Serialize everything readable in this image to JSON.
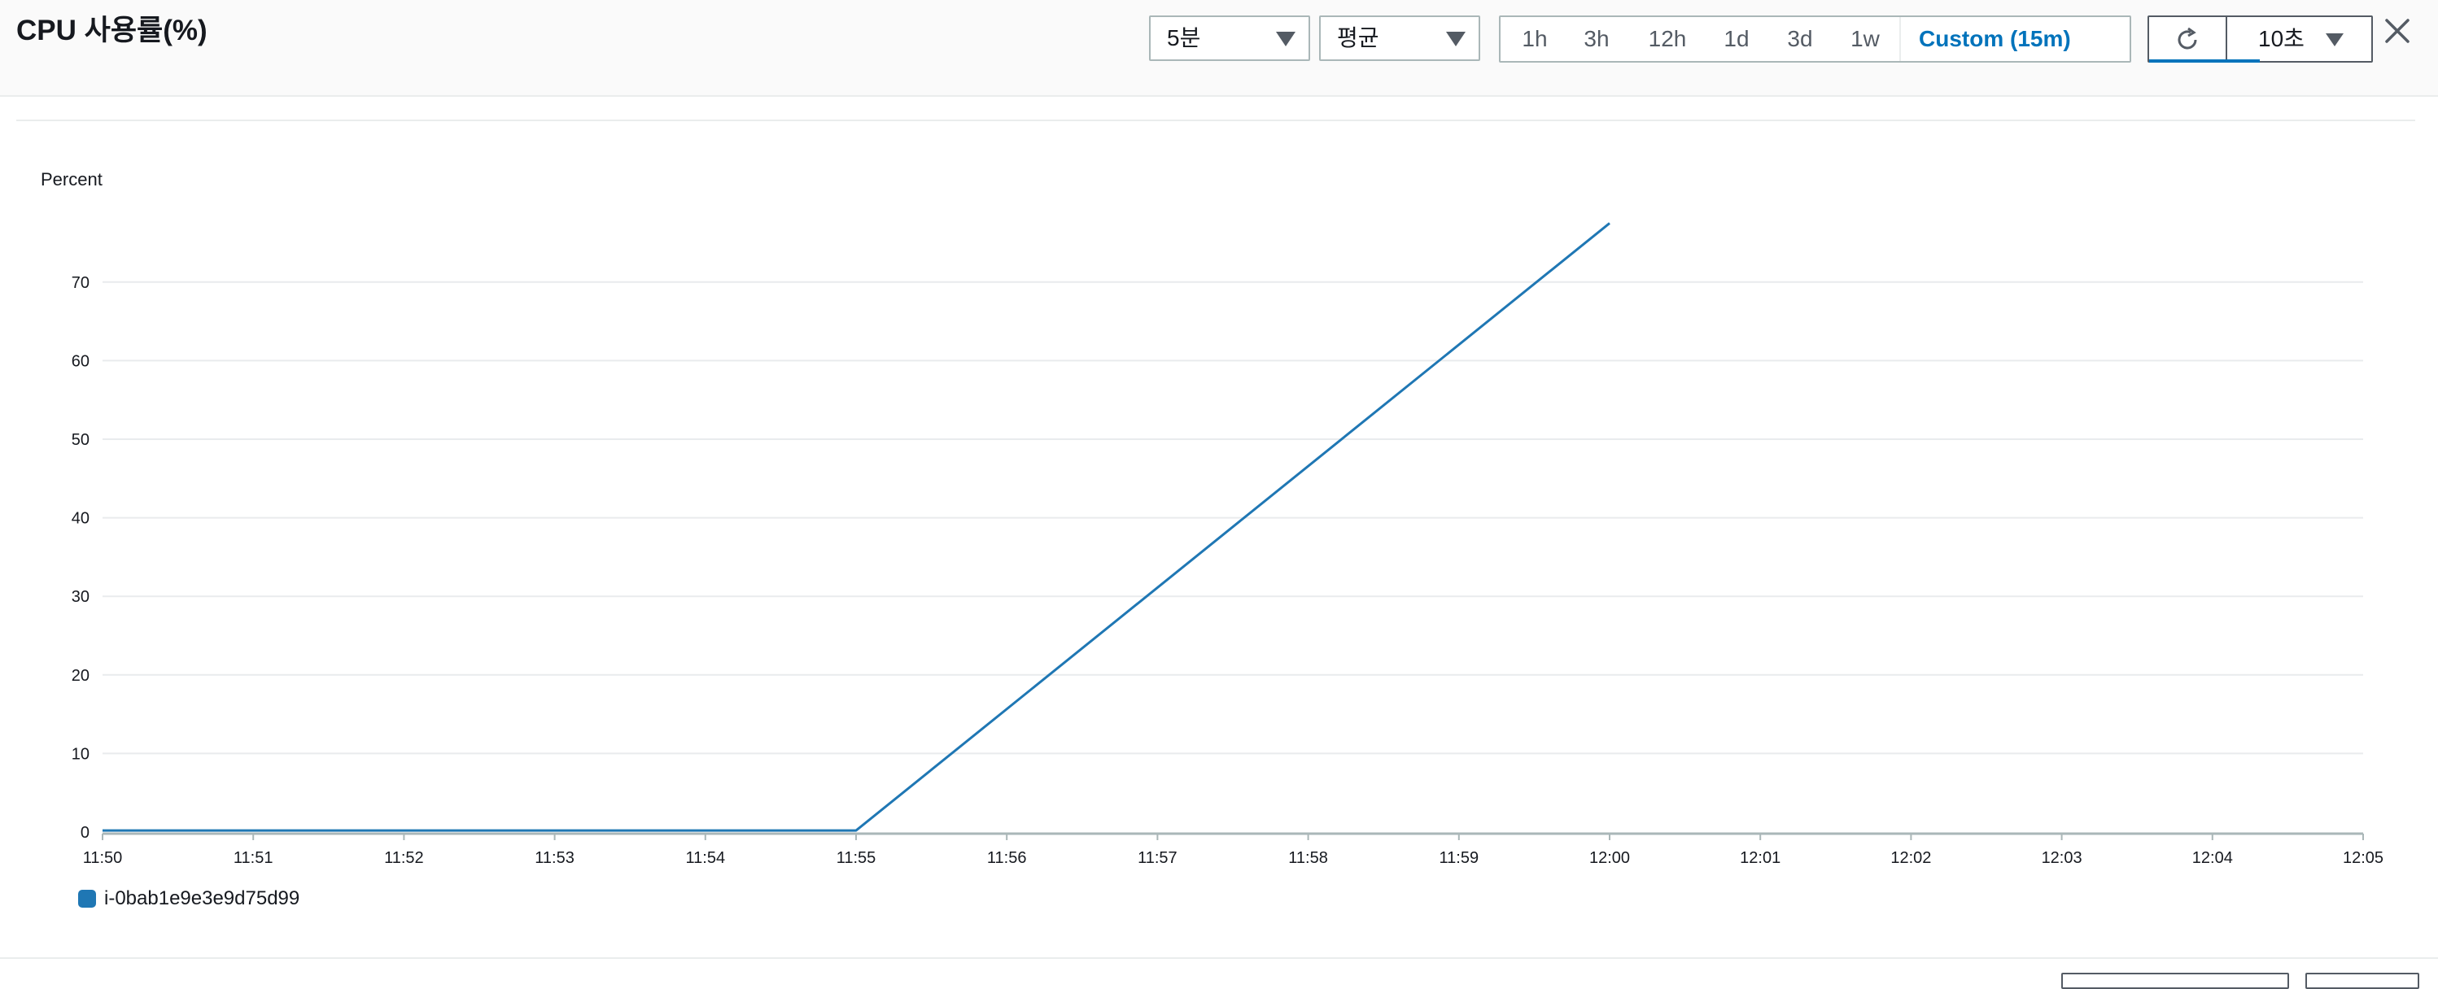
{
  "title": "CPU 사용률(%)",
  "toolbar": {
    "period": "5분",
    "statistic": "평균",
    "ranges": [
      "1h",
      "3h",
      "12h",
      "1d",
      "3d",
      "1w"
    ],
    "custom_range": "Custom (15m)",
    "refresh_interval": "10초"
  },
  "colors": {
    "series": "#1f77b4",
    "active": "#0073bb"
  },
  "icons": [
    "chevron-down-icon",
    "calendar-icon",
    "refresh-icon",
    "close-icon"
  ],
  "chart_data": {
    "type": "line",
    "ylabel": "Percent",
    "yticks": [
      0,
      10,
      20,
      30,
      40,
      50,
      60,
      70
    ],
    "ylim": [
      0,
      80
    ],
    "xticks": [
      "11:50",
      "11:51",
      "11:52",
      "11:53",
      "11:54",
      "11:55",
      "11:56",
      "11:57",
      "11:58",
      "11:59",
      "12:00",
      "12:01",
      "12:02",
      "12:03",
      "12:04",
      "12:05"
    ],
    "xlim": [
      "11:50",
      "12:05"
    ],
    "grid": true,
    "legend_position": "bottom-left",
    "series": [
      {
        "name": "i-0bab1e9e3e9d75d99",
        "points": [
          {
            "x": "11:50",
            "y": 0.2
          },
          {
            "x": "11:55",
            "y": 0.2
          },
          {
            "x": "12:00",
            "y": 77.5
          }
        ]
      }
    ]
  }
}
